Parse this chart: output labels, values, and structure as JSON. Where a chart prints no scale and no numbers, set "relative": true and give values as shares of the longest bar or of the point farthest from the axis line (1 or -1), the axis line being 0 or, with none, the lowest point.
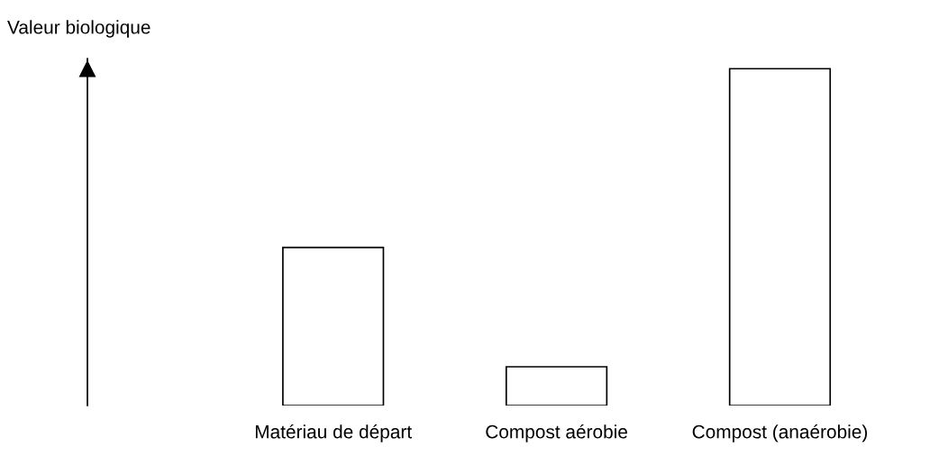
{
  "chart_data": {
    "type": "bar",
    "ylabel": "Valeur biologique",
    "categories": [
      "Matériau de départ",
      "Compost aérobie",
      "Compost (anaérobie)"
    ],
    "values": [
      0.469,
      0.115,
      1
    ],
    "color": "#ffffff",
    "relative": true
  }
}
